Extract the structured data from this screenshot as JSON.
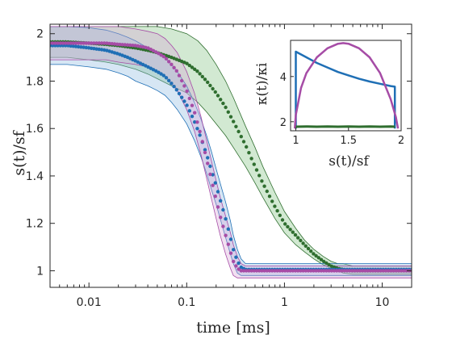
{
  "chart_data": [
    {
      "type": "scatter",
      "title": "",
      "xlabel": "time [ms]",
      "ylabel": "s(t)/s_f",
      "xlabel_display": "time [ms]",
      "ylabel_display": "s(t)/sf",
      "x_scale": "log",
      "xlim": [
        0.004,
        20
      ],
      "ylim": [
        0.93,
        2.04
      ],
      "x_ticks": [
        0.01,
        0.1,
        1,
        10
      ],
      "x_tick_labels": [
        "0.01",
        "0.1",
        "1",
        "10"
      ],
      "y_ticks": [
        1,
        1.2,
        1.4,
        1.6,
        1.8,
        2
      ],
      "y_tick_labels": [
        "1",
        "1.2",
        "1.4",
        "1.6",
        "1.8",
        "2"
      ],
      "grid": false,
      "legend": "none",
      "series": [
        {
          "color": "#2f6e2f",
          "band_color": "#7fbf7f",
          "x": [
            0.004,
            0.006,
            0.01,
            0.015,
            0.02,
            0.03,
            0.04,
            0.05,
            0.07,
            0.1,
            0.13,
            0.16,
            0.2,
            0.25,
            0.3,
            0.4,
            0.5,
            0.6,
            0.8,
            1.0,
            1.3,
            1.6,
            2.0,
            2.5,
            3.0,
            3.5,
            4.0,
            5.0,
            7.0,
            10.0,
            15.0,
            20.0
          ],
          "y": [
            1.965,
            1.965,
            1.96,
            1.955,
            1.95,
            1.94,
            1.93,
            1.92,
            1.9,
            1.875,
            1.84,
            1.8,
            1.75,
            1.69,
            1.63,
            1.53,
            1.44,
            1.37,
            1.27,
            1.2,
            1.15,
            1.11,
            1.07,
            1.04,
            1.02,
            1.01,
            1.005,
            1.0,
            1.0,
            1.0,
            1.0,
            1.0
          ],
          "upper": [
            2.03,
            2.03,
            2.03,
            2.03,
            2.03,
            2.03,
            2.03,
            2.03,
            2.02,
            2.0,
            1.97,
            1.93,
            1.87,
            1.8,
            1.73,
            1.61,
            1.52,
            1.44,
            1.33,
            1.25,
            1.18,
            1.13,
            1.09,
            1.06,
            1.04,
            1.03,
            1.03,
            1.02,
            1.02,
            1.02,
            1.02,
            1.02
          ],
          "lower": [
            1.9,
            1.9,
            1.89,
            1.88,
            1.87,
            1.85,
            1.83,
            1.81,
            1.78,
            1.75,
            1.71,
            1.67,
            1.62,
            1.57,
            1.52,
            1.44,
            1.37,
            1.31,
            1.22,
            1.16,
            1.11,
            1.08,
            1.05,
            1.025,
            1.01,
            1.0,
            0.99,
            0.985,
            0.985,
            0.985,
            0.985,
            0.985
          ]
        },
        {
          "color": "#1f6fb5",
          "band_color": "#8ab8e0",
          "x": [
            0.004,
            0.006,
            0.01,
            0.015,
            0.02,
            0.025,
            0.03,
            0.04,
            0.05,
            0.06,
            0.07,
            0.08,
            0.1,
            0.12,
            0.14,
            0.16,
            0.18,
            0.2,
            0.22,
            0.25,
            0.28,
            0.3,
            0.33,
            0.36,
            0.4,
            0.5,
            0.7,
            1.0,
            2.0,
            5.0,
            10.0,
            20.0
          ],
          "y": [
            1.95,
            1.95,
            1.94,
            1.93,
            1.915,
            1.9,
            1.885,
            1.86,
            1.84,
            1.82,
            1.79,
            1.76,
            1.7,
            1.63,
            1.56,
            1.49,
            1.42,
            1.36,
            1.3,
            1.22,
            1.14,
            1.09,
            1.04,
            1.015,
            1.005,
            1.005,
            1.005,
            1.005,
            1.005,
            1.005,
            1.005,
            1.005
          ],
          "upper": [
            2.03,
            2.03,
            2.025,
            2.015,
            2.0,
            1.985,
            1.97,
            1.94,
            1.92,
            1.9,
            1.87,
            1.84,
            1.78,
            1.71,
            1.64,
            1.57,
            1.5,
            1.43,
            1.37,
            1.29,
            1.21,
            1.15,
            1.09,
            1.05,
            1.03,
            1.03,
            1.03,
            1.03,
            1.03,
            1.03,
            1.03,
            1.03
          ],
          "lower": [
            1.87,
            1.87,
            1.86,
            1.85,
            1.835,
            1.82,
            1.8,
            1.78,
            1.76,
            1.74,
            1.71,
            1.68,
            1.62,
            1.55,
            1.48,
            1.41,
            1.34,
            1.28,
            1.22,
            1.14,
            1.07,
            1.03,
            0.99,
            0.98,
            0.98,
            0.98,
            0.98,
            0.98,
            0.98,
            0.98,
            0.98,
            0.98
          ]
        },
        {
          "color": "#a64ca6",
          "band_color": "#d6a6d6",
          "x": [
            0.004,
            0.006,
            0.01,
            0.015,
            0.02,
            0.03,
            0.04,
            0.05,
            0.06,
            0.07,
            0.08,
            0.1,
            0.12,
            0.14,
            0.16,
            0.18,
            0.2,
            0.22,
            0.25,
            0.28,
            0.3,
            0.33,
            0.36,
            0.4,
            0.5,
            0.7,
            1.0,
            2.0,
            5.0,
            10.0,
            20.0
          ],
          "y": [
            1.96,
            1.96,
            1.96,
            1.96,
            1.955,
            1.95,
            1.94,
            1.92,
            1.9,
            1.87,
            1.84,
            1.76,
            1.67,
            1.57,
            1.47,
            1.38,
            1.3,
            1.23,
            1.15,
            1.08,
            1.04,
            1.01,
            1.0,
            1.0,
            1.0,
            1.0,
            1.0,
            1.0,
            1.0,
            1.0,
            1.0
          ],
          "upper": [
            2.03,
            2.03,
            2.03,
            2.03,
            2.03,
            2.02,
            2.01,
            2.0,
            1.98,
            1.95,
            1.92,
            1.84,
            1.75,
            1.65,
            1.55,
            1.46,
            1.38,
            1.31,
            1.23,
            1.16,
            1.11,
            1.06,
            1.03,
            1.02,
            1.02,
            1.02,
            1.02,
            1.02,
            1.02,
            1.02,
            1.02
          ],
          "lower": [
            1.89,
            1.89,
            1.89,
            1.89,
            1.88,
            1.87,
            1.86,
            1.84,
            1.82,
            1.79,
            1.76,
            1.68,
            1.59,
            1.49,
            1.39,
            1.3,
            1.22,
            1.15,
            1.07,
            1.01,
            0.98,
            0.97,
            0.97,
            0.97,
            0.97,
            0.97,
            0.97,
            0.97,
            0.97,
            0.97,
            0.97
          ]
        }
      ]
    },
    {
      "type": "line",
      "title": "",
      "xlabel": "s(t)/s_f",
      "ylabel": "κ(t)/κ_i",
      "xlabel_display": "s(t)/sf",
      "ylabel_display": "κ(t)/κi",
      "xlim": [
        0.95,
        2.0
      ],
      "ylim": [
        1.6,
        5.6
      ],
      "x_ticks": [
        1,
        1.5,
        2
      ],
      "x_tick_labels": [
        "1",
        "1.5",
        "2"
      ],
      "y_ticks": [
        2,
        4
      ],
      "y_tick_labels": [
        "2",
        "4"
      ],
      "grid": false,
      "legend": "none",
      "series": [
        {
          "color": "#1f6fb5",
          "x": [
            1.0,
            1.0,
            1.1,
            1.2,
            1.3,
            1.4,
            1.5,
            1.6,
            1.7,
            1.8,
            1.9,
            1.94,
            1.94
          ],
          "y": [
            1.7,
            5.1,
            4.85,
            4.6,
            4.4,
            4.2,
            4.05,
            3.9,
            3.78,
            3.68,
            3.58,
            3.55,
            1.7
          ]
        },
        {
          "color": "#a64ca6",
          "x": [
            0.99,
            1.0,
            1.05,
            1.1,
            1.2,
            1.3,
            1.4,
            1.45,
            1.5,
            1.6,
            1.7,
            1.8,
            1.9,
            1.95,
            1.97
          ],
          "y": [
            1.7,
            2.3,
            3.5,
            4.15,
            4.85,
            5.25,
            5.45,
            5.48,
            5.45,
            5.25,
            4.85,
            4.15,
            3.0,
            2.2,
            1.7
          ]
        },
        {
          "color": "#2f6e2f",
          "x": [
            1.0,
            1.1,
            1.2,
            1.3,
            1.4,
            1.5,
            1.6,
            1.7,
            1.8,
            1.9,
            1.94
          ],
          "y": [
            1.78,
            1.79,
            1.78,
            1.79,
            1.78,
            1.79,
            1.78,
            1.79,
            1.78,
            1.79,
            1.78
          ]
        }
      ]
    }
  ]
}
